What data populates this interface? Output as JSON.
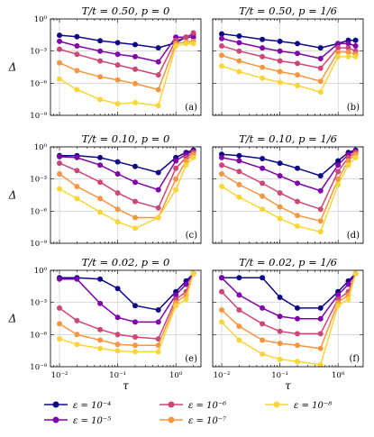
{
  "chart_data": {
    "type": "line",
    "x_log": true,
    "y_log": true,
    "xlim": [
      0.007,
      2.7
    ],
    "ylim": [
      1e-09,
      1
    ],
    "xlabel": "τ",
    "ylabel": "Δ",
    "x_ticks": [
      0.01,
      0.1,
      1
    ],
    "x_tick_labels": [
      "10⁻²",
      "10⁻¹",
      "10⁰"
    ],
    "y_ticks": [
      1e-09,
      1e-06,
      0.001,
      1
    ],
    "y_tick_labels": [
      "10⁻⁹",
      "10⁻⁶",
      "10⁻³",
      "10⁰"
    ],
    "grid": true,
    "legend_placement": "bottom",
    "tau": [
      0.01,
      0.02,
      0.05,
      0.1,
      0.2,
      0.5,
      1.0,
      1.5,
      2.0
    ],
    "legend": [
      {
        "label": "ε = 10⁻⁴",
        "color": "#0d0887"
      },
      {
        "label": "ε = 10⁻⁵",
        "color": "#7e03a8"
      },
      {
        "label": "ε = 10⁻⁶",
        "color": "#cc4778"
      },
      {
        "label": "ε = 10⁻⁷",
        "color": "#f89540"
      },
      {
        "label": "ε = 10⁻⁸",
        "color": "#f9d537"
      }
    ],
    "panels": [
      {
        "title": "T/t = 0.50,  p = 0",
        "label": "(a)",
        "series": [
          {
            "color": "#0d0887",
            "values": [
              0.03,
              0.022,
              0.009,
              0.006,
              0.004,
              0.002,
              0.006,
              0.02,
              0.04
            ]
          },
          {
            "color": "#7e03a8",
            "values": [
              0.008,
              0.003,
              0.001,
              0.0005,
              0.0003,
              0.0001,
              0.02,
              0.02,
              0.02
            ]
          },
          {
            "color": "#cc4778",
            "values": [
              0.0015,
              0.0005,
              0.00012,
              5e-05,
              2e-05,
              6e-06,
              0.01,
              0.02,
              0.05
            ]
          },
          {
            "color": "#f89540",
            "values": [
              8e-05,
              1.5e-05,
              4e-06,
              2e-06,
              9e-07,
              2.5e-07,
              0.005,
              0.007,
              0.008
            ]
          },
          {
            "color": "#f9d537",
            "values": [
              2.5e-06,
              2.5e-07,
              3e-08,
              1.2e-08,
              1.5e-08,
              8e-09,
              0.003,
              0.005,
              0.005
            ]
          }
        ]
      },
      {
        "title": "T/t = 0.50,  p = 1/6",
        "label": "(b)",
        "series": [
          {
            "color": "#0d0887",
            "values": [
              0.04,
              0.025,
              0.012,
              0.008,
              0.005,
              0.002,
              0.005,
              0.01,
              0.01
            ]
          },
          {
            "color": "#7e03a8",
            "values": [
              0.015,
              0.006,
              0.002,
              0.001,
              0.0006,
              0.0002,
              0.005,
              0.005,
              0.003
            ]
          },
          {
            "color": "#cc4778",
            "values": [
              0.003,
              0.001,
              0.0003,
              0.00012,
              7e-05,
              2.5e-05,
              0.002,
              0.002,
              0.001
            ]
          },
          {
            "color": "#f89540",
            "values": [
              0.0004,
              0.00012,
              3e-05,
              1.2e-05,
              6e-06,
              1.5e-06,
              0.0008,
              0.0008,
              0.0005
            ]
          },
          {
            "color": "#f9d537",
            "values": [
              4e-05,
              1.2e-05,
              3e-06,
              1.2e-06,
              6e-07,
              1.5e-07,
              0.0003,
              0.0003,
              0.0003
            ]
          }
        ]
      },
      {
        "title": "T/t = 0.10,  p = 0",
        "label": "(c)",
        "series": [
          {
            "color": "#0d0887",
            "values": [
              0.15,
              0.15,
              0.1,
              0.04,
              0.015,
              0.004,
              0.1,
              0.3,
              0.5
            ]
          },
          {
            "color": "#7e03a8",
            "values": [
              0.12,
              0.1,
              0.02,
              0.003,
              0.0005,
              0.0001,
              0.05,
              0.2,
              0.4
            ]
          },
          {
            "color": "#cc4778",
            "values": [
              0.03,
              0.006,
              0.0005,
              5e-05,
              8e-06,
              2e-06,
              0.01,
              0.1,
              0.3
            ]
          },
          {
            "color": "#f89540",
            "values": [
              0.003,
              0.0002,
              1.5e-05,
              1.5e-06,
              2.5e-07,
              2.5e-07,
              0.001,
              0.05,
              0.2
            ]
          },
          {
            "color": "#f9d537",
            "values": [
              0.00012,
              1.5e-05,
              8e-07,
              1e-07,
              2.5e-08,
              2.5e-07,
              0.0001,
              0.02,
              0.1
            ]
          }
        ]
      },
      {
        "title": "T/t = 0.10,  p = 1/6",
        "label": "(d)",
        "series": [
          {
            "color": "#0d0887",
            "values": [
              0.2,
              0.15,
              0.08,
              0.03,
              0.01,
              0.002,
              0.05,
              0.3,
              0.5
            ]
          },
          {
            "color": "#7e03a8",
            "values": [
              0.1,
              0.05,
              0.01,
              0.002,
              0.0004,
              8e-05,
              0.02,
              0.2,
              0.4
            ]
          },
          {
            "color": "#cc4778",
            "values": [
              0.02,
              0.005,
              0.0004,
              5e-05,
              8e-06,
              1.5e-06,
              0.005,
              0.1,
              0.3
            ]
          },
          {
            "color": "#f89540",
            "values": [
              0.003,
              0.0003,
              2.5e-05,
              2.5e-06,
              4e-07,
              1.2e-07,
              0.001,
              0.05,
              0.2
            ]
          },
          {
            "color": "#f9d537",
            "values": [
              0.0002,
              2e-05,
              1.5e-06,
              2e-07,
              4e-08,
              1.2e-08,
              0.0003,
              0.02,
              0.1
            ]
          }
        ]
      },
      {
        "title": "T/t = 0.02,  p = 0",
        "label": "(e)",
        "series": [
          {
            "color": "#0d0887",
            "values": [
              0.2,
              0.2,
              0.15,
              0.02,
              0.0005,
              0.0002,
              0.01,
              0.1,
              0.5
            ]
          },
          {
            "color": "#7e03a8",
            "values": [
              0.15,
              0.15,
              0.0008,
              4e-05,
              1.5e-05,
              1.5e-05,
              0.005,
              0.05,
              0.5
            ]
          },
          {
            "color": "#cc4778",
            "values": [
              0.0003,
              2e-05,
              3e-06,
              1e-06,
              6e-07,
              4e-07,
              0.002,
              0.01,
              0.5
            ]
          },
          {
            "color": "#f89540",
            "values": [
              1e-05,
              1e-06,
              3e-07,
              1.2e-07,
              1e-07,
              1e-07,
              0.001,
              0.005,
              0.5
            ]
          },
          {
            "color": "#f9d537",
            "values": [
              4e-07,
              1.2e-07,
              5e-08,
              3e-08,
              2.5e-08,
              2.5e-08,
              0.0005,
              0.002,
              0.5
            ]
          }
        ]
      },
      {
        "title": "T/t = 0.02,  p = 1/6",
        "label": "(f)",
        "series": [
          {
            "color": "#0d0887",
            "values": [
              0.2,
              0.2,
              0.2,
              0.003,
              0.0003,
              0.0003,
              0.01,
              0.1,
              0.5
            ]
          },
          {
            "color": "#7e03a8",
            "values": [
              0.2,
              0.005,
              0.0003,
              5e-05,
              3e-05,
              3e-05,
              0.005,
              0.05,
              0.5
            ]
          },
          {
            "color": "#cc4778",
            "values": [
              0.01,
              0.0002,
              1e-05,
              2e-06,
              1.2e-06,
              1.2e-06,
              0.002,
              0.01,
              0.5
            ]
          },
          {
            "color": "#f89540",
            "values": [
              0.0002,
              6e-06,
              3e-07,
              1.5e-07,
              1e-07,
              5e-08,
              0.001,
              0.005,
              0.5
            ]
          },
          {
            "color": "#f9d537",
            "values": [
              1.5e-05,
              3e-07,
              1.5e-08,
              5e-09,
              3e-09,
              1.5e-09,
              0.0005,
              0.002,
              0.5
            ]
          }
        ]
      }
    ]
  }
}
